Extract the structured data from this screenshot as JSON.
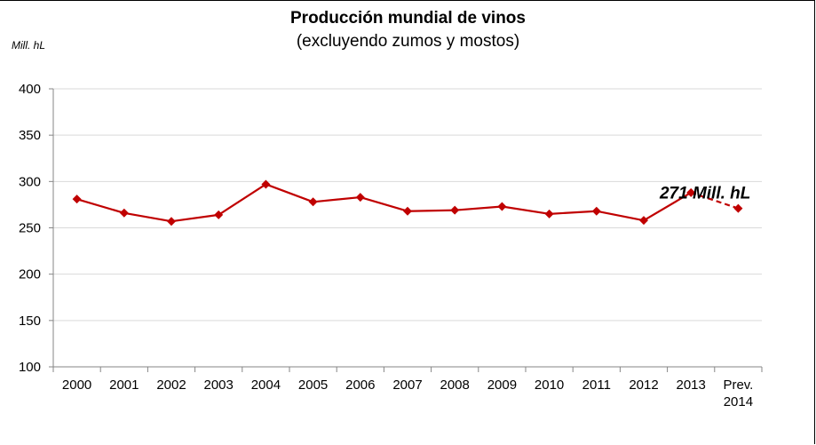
{
  "chart_data": {
    "type": "line",
    "title": "Producción mundial de vinos",
    "subtitle": "(excluyendo zumos y mostos)",
    "ylabel": "Mill. hL",
    "xlabel": "",
    "ylim": [
      100,
      400
    ],
    "yticks": [
      100,
      150,
      200,
      250,
      300,
      350,
      400
    ],
    "grid": true,
    "categories": [
      "2000",
      "2001",
      "2002",
      "2003",
      "2004",
      "2005",
      "2006",
      "2007",
      "2008",
      "2009",
      "2010",
      "2011",
      "2012",
      "2013",
      "Prev. 2014"
    ],
    "category_lines": [
      [
        "2000"
      ],
      [
        "2001"
      ],
      [
        "2002"
      ],
      [
        "2003"
      ],
      [
        "2004"
      ],
      [
        "2005"
      ],
      [
        "2006"
      ],
      [
        "2007"
      ],
      [
        "2008"
      ],
      [
        "2009"
      ],
      [
        "2010"
      ],
      [
        "2011"
      ],
      [
        "2012"
      ],
      [
        "2013"
      ],
      [
        "Prev.",
        "2014"
      ]
    ],
    "series": [
      {
        "name": "Producción mundial de vinos",
        "values": [
          281,
          266,
          257,
          264,
          297,
          278,
          283,
          268,
          269,
          273,
          265,
          268,
          258,
          288,
          271
        ],
        "forecast_from_index": 13,
        "color": "#c00000"
      }
    ],
    "annotation": {
      "text": "271 Mill. hL",
      "category": "Prev. 2014",
      "value": 271
    }
  }
}
